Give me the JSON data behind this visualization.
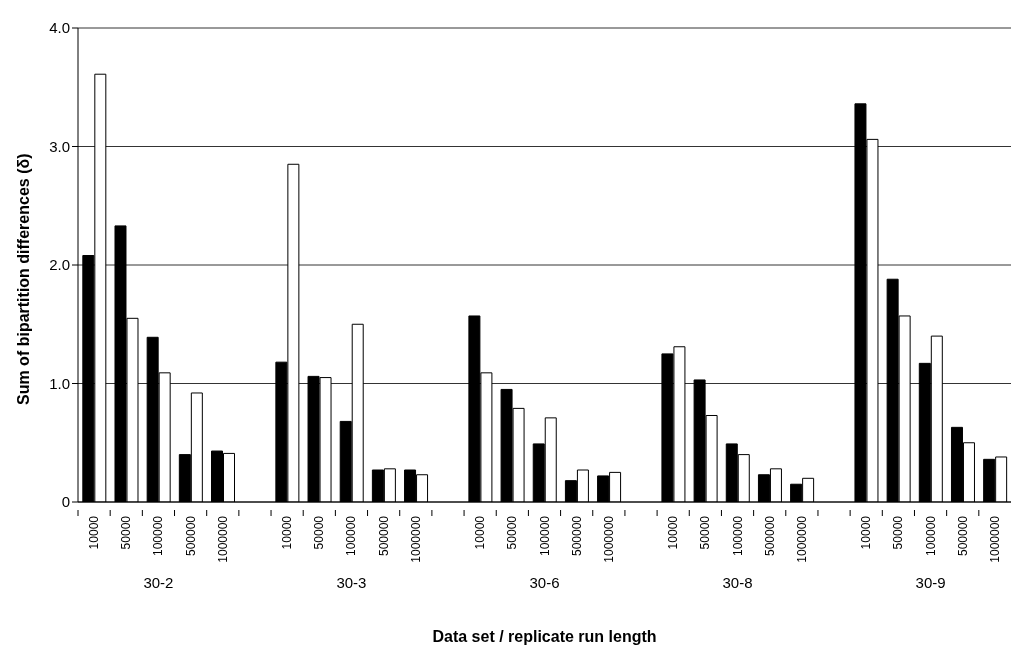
{
  "chart_data": {
    "type": "bar",
    "xlabel": "Data set / replicate run length",
    "ylabel": "Sum of bipartition differences (δ)",
    "categories": [
      "10000",
      "50000",
      "100000",
      "500000",
      "1000000",
      null,
      "10000",
      "50000",
      "100000",
      "500000",
      "1000000",
      null,
      "10000",
      "50000",
      "100000",
      "500000",
      "1000000",
      null,
      "10000",
      "50000",
      "100000",
      "500000",
      "1000000",
      null,
      "10000",
      "50000",
      "100000",
      "500000",
      "1000000"
    ],
    "series": [
      {
        "color": "#000000",
        "values": [
          2.08,
          2.33,
          1.39,
          0.4,
          0.43,
          null,
          1.18,
          1.06,
          0.68,
          0.27,
          0.27,
          null,
          1.57,
          0.95,
          0.49,
          0.18,
          0.22,
          null,
          1.25,
          1.03,
          0.49,
          0.23,
          0.15,
          null,
          3.36,
          1.88,
          1.17,
          0.63,
          0.36
        ]
      },
      {
        "color": "#ffffff",
        "values": [
          3.61,
          1.55,
          1.09,
          0.92,
          0.41,
          null,
          2.85,
          1.05,
          1.5,
          0.28,
          0.23,
          null,
          1.09,
          0.79,
          0.71,
          0.27,
          0.25,
          null,
          1.31,
          0.73,
          0.4,
          0.28,
          0.2,
          null,
          3.06,
          1.57,
          1.4,
          0.5,
          0.38
        ]
      }
    ],
    "annotations": [
      "30-2",
      "30-3",
      "30-6",
      "30-8",
      "30-9"
    ],
    "ylim": [
      0,
      4
    ],
    "yticks": [
      0,
      {
        "value": 1,
        "label": "1.0"
      },
      {
        "value": 2,
        "label": "2.0"
      },
      {
        "value": 3,
        "label": "3.0"
      },
      {
        "value": 4,
        "label": "4.0"
      }
    ],
    "grid": "y"
  }
}
